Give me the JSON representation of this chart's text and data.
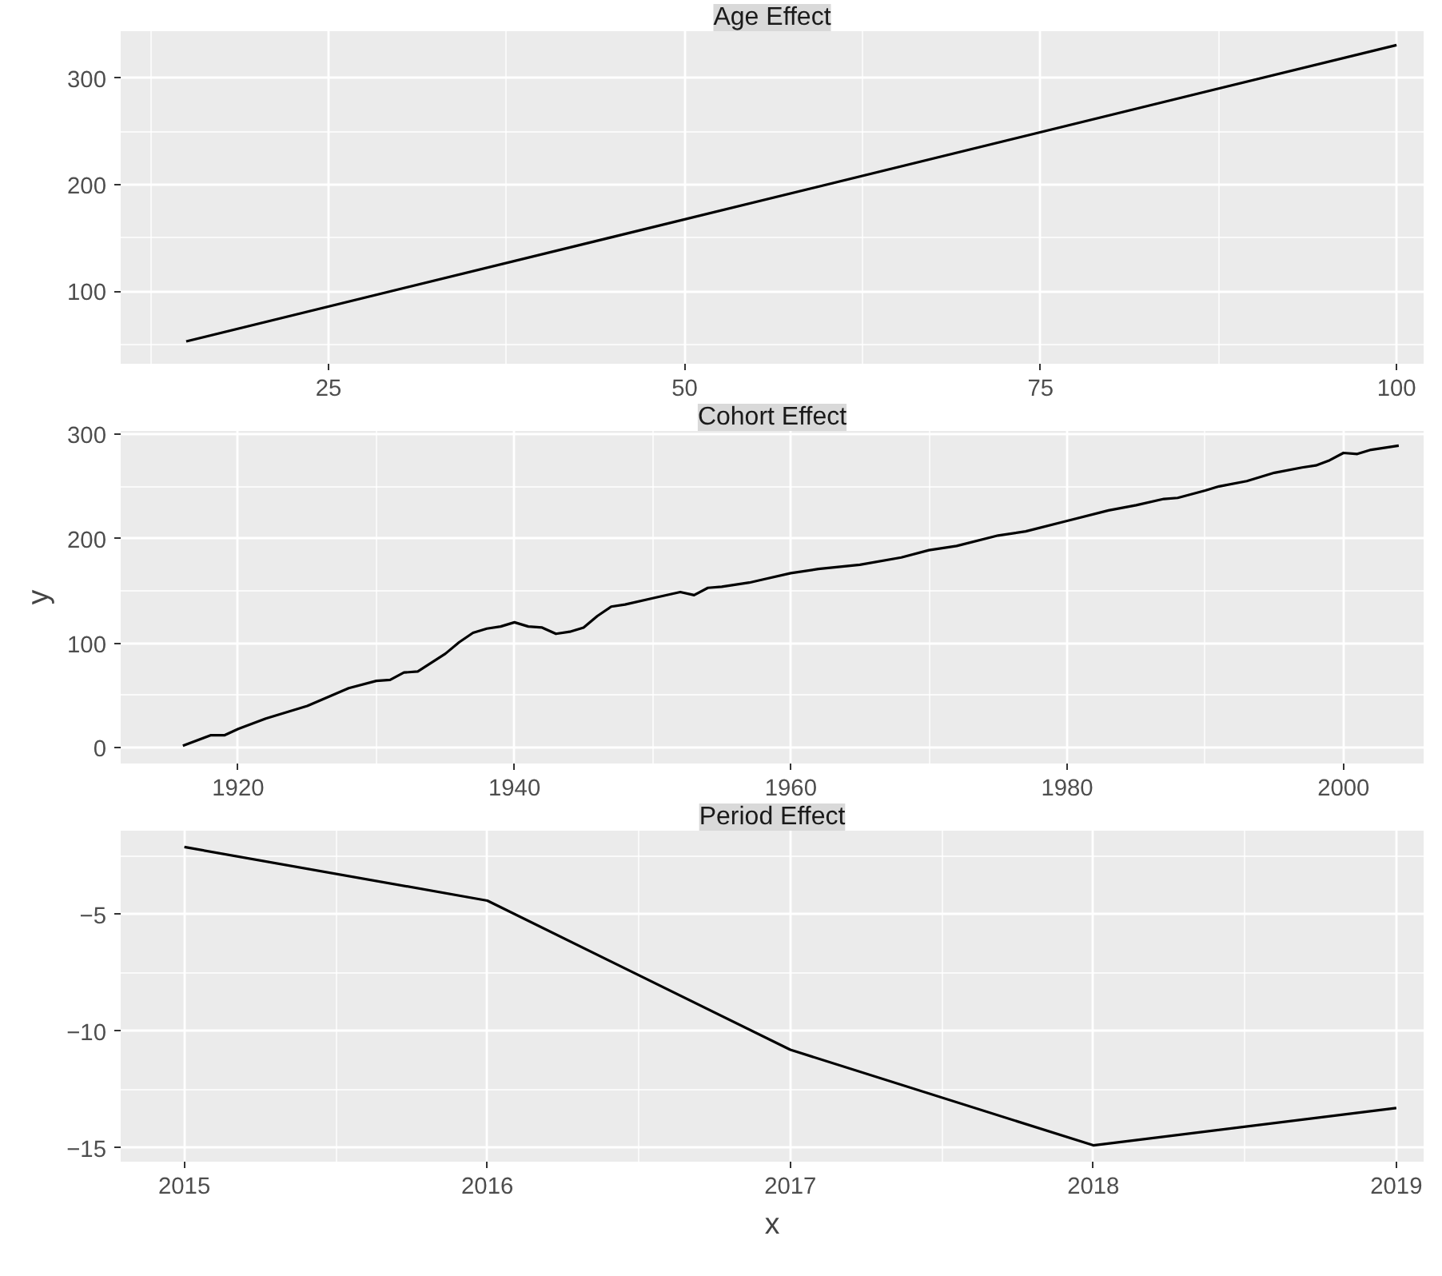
{
  "chart_data": [
    {
      "type": "line",
      "title": "Age Effect",
      "x": [
        15,
        100
      ],
      "values": [
        53,
        331
      ],
      "color": "#000000",
      "xlim": [
        10.4,
        101.9
      ],
      "ylim": [
        32,
        344
      ],
      "xticks": [
        25,
        50,
        75,
        100
      ],
      "yticks": [
        100,
        200,
        300
      ],
      "grid": true
    },
    {
      "type": "line",
      "title": "Cohort Effect",
      "ylabel": "y",
      "x": [
        1916,
        1918,
        1919,
        1920,
        1922,
        1925,
        1928,
        1930,
        1931,
        1932,
        1933,
        1935,
        1936,
        1937,
        1938,
        1939,
        1940,
        1941,
        1942,
        1943,
        1944,
        1945,
        1946,
        1947,
        1948,
        1950,
        1952,
        1953,
        1954,
        1955,
        1957,
        1958,
        1960,
        1962,
        1965,
        1968,
        1970,
        1972,
        1975,
        1977,
        1980,
        1983,
        1985,
        1987,
        1988,
        1990,
        1991,
        1993,
        1995,
        1997,
        1998,
        1999,
        2000,
        2001,
        2002,
        2004
      ],
      "values": [
        2,
        12,
        12,
        18,
        28,
        40,
        57,
        64,
        65,
        72,
        73,
        90,
        101,
        110,
        114,
        116,
        120,
        116,
        115,
        109,
        111,
        115,
        126,
        135,
        137,
        143,
        149,
        146,
        153,
        154,
        158,
        161,
        167,
        171,
        175,
        182,
        189,
        193,
        203,
        207,
        217,
        227,
        232,
        238,
        239,
        246,
        250,
        255,
        263,
        268,
        270,
        275,
        282,
        281,
        285,
        289
      ],
      "color": "#000000",
      "xlim": [
        1911.5,
        2005.8
      ],
      "ylim": [
        -15,
        303
      ],
      "xticks": [
        1920,
        1940,
        1960,
        1980,
        2000
      ],
      "yticks": [
        0,
        100,
        200,
        300
      ],
      "grid": true
    },
    {
      "type": "line",
      "title": "Period Effect",
      "xlabel": "x",
      "x": [
        2015,
        2016,
        2017,
        2018,
        2019
      ],
      "values": [
        -2.1,
        -4.4,
        -10.8,
        -14.9,
        -13.3
      ],
      "color": "#000000",
      "xlim": [
        2014.79,
        2019.09
      ],
      "ylim": [
        -15.6,
        -1.4
      ],
      "xticks": [
        2015,
        2016,
        2017,
        2018,
        2019
      ],
      "yticks": [
        -15,
        -10,
        -5
      ],
      "grid": true
    }
  ]
}
